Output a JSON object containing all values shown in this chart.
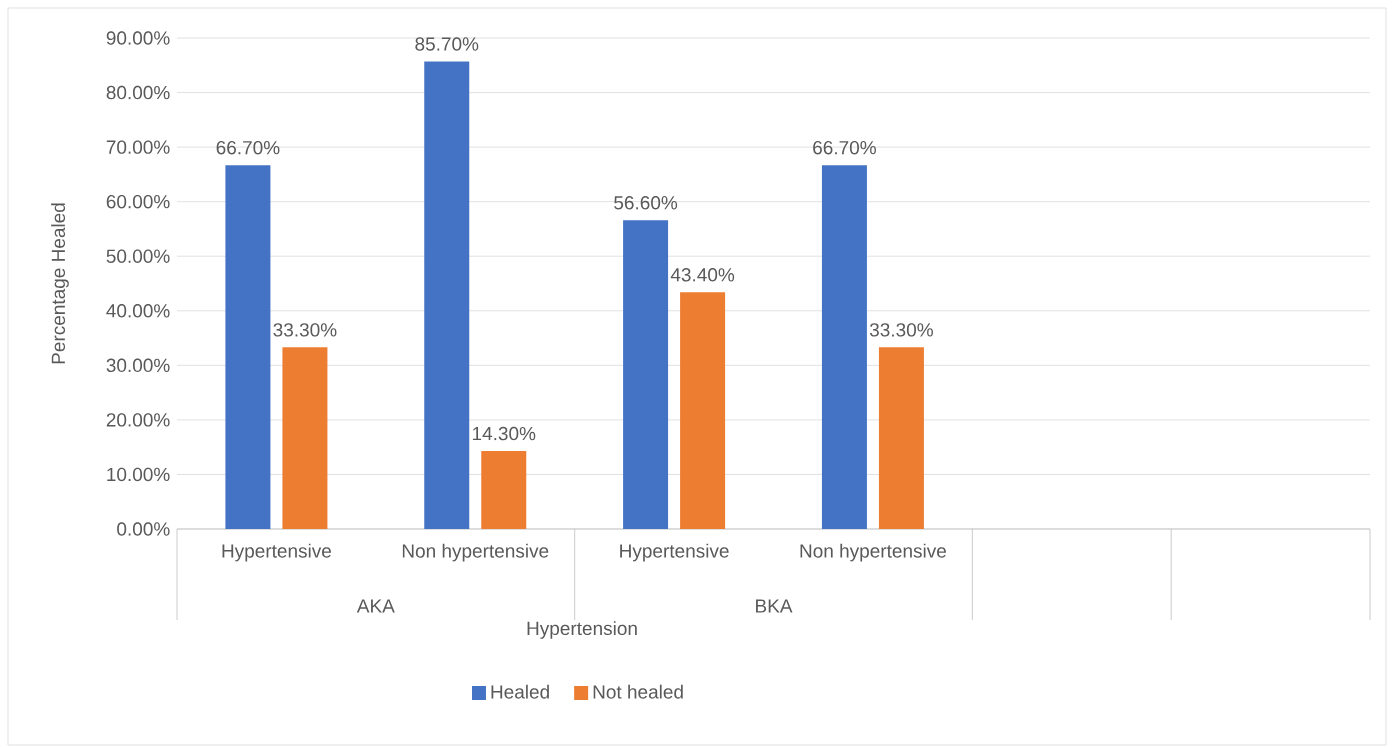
{
  "chart_data": {
    "type": "bar",
    "categories": [
      "Hypertensive",
      "Non hypertensive",
      "Hypertensive",
      "Non hypertensive",
      null,
      null
    ],
    "series": [
      {
        "name": "Healed",
        "color": "#4472c4",
        "values": [
          66.7,
          85.7,
          56.6,
          66.7,
          null,
          null
        ],
        "value_labels": [
          "66.70%",
          "85.70%",
          "56.60%",
          "66.70%",
          null,
          null
        ]
      },
      {
        "name": "Not healed",
        "color": "#ed7d31",
        "values": [
          33.3,
          14.3,
          43.4,
          33.3,
          null,
          null
        ],
        "value_labels": [
          "33.30%",
          "14.30%",
          "43.40%",
          "33.30%",
          null,
          null
        ]
      }
    ],
    "xlabel": "Hypertension",
    "ylabel": "Percentage Healed",
    "annotations": [
      "AKA",
      "BKA"
    ],
    "ylim": [
      0,
      90
    ],
    "yticks": [
      {
        "value": 0,
        "label": "0.00%"
      },
      {
        "value": 10,
        "label": "10.00%"
      },
      {
        "value": 20,
        "label": "20.00%"
      },
      {
        "value": 30,
        "label": "30.00%"
      },
      {
        "value": 40,
        "label": "40.00%"
      },
      {
        "value": 50,
        "label": "50.00%"
      },
      {
        "value": 60,
        "label": "60.00%"
      },
      {
        "value": 70,
        "label": "70.00%"
      },
      {
        "value": 80,
        "label": "80.00%"
      },
      {
        "value": 90,
        "label": "90.00%"
      }
    ],
    "grid": "y",
    "legend": "bottom"
  }
}
